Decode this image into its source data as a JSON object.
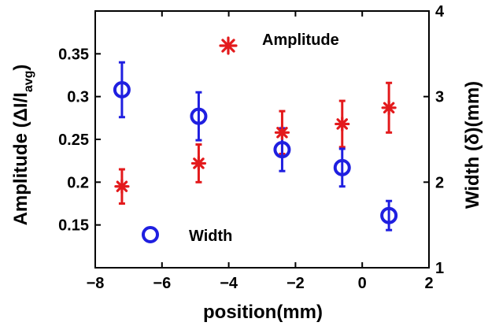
{
  "chart_data": {
    "type": "scatter",
    "xlabel": "position(mm)",
    "ylabel_left": {
      "main": "Amplitude (ΔI/I",
      "sub": "avg",
      "close": ")"
    },
    "ylabel_right": "Width (δ)(mm)",
    "xlim": [
      -8,
      2
    ],
    "ylim_left": [
      0.1,
      0.4
    ],
    "ylim_right": [
      1,
      4
    ],
    "x_ticks": [
      -8,
      -6,
      -4,
      -2,
      0,
      2
    ],
    "y_ticks_left": [
      0.15,
      0.2,
      0.25,
      0.3,
      0.35
    ],
    "y_ticks_right": [
      1,
      2,
      3,
      4
    ],
    "x_tick_labels": [
      "−8",
      "−6",
      "−4",
      "−2",
      "0",
      "2"
    ],
    "y_tick_labels_left": [
      "0.15",
      "0.2",
      "0.25",
      "0.3",
      "0.35"
    ],
    "y_tick_labels_right": [
      "1",
      "2",
      "3",
      "4"
    ],
    "grid": false,
    "series": [
      {
        "name": "Amplitude",
        "axis": "left",
        "marker": "asterisk",
        "color": "#e31a1c",
        "x": [
          -7.2,
          -4.9,
          -2.4,
          -0.6,
          0.8
        ],
        "y": [
          0.195,
          0.222,
          0.258,
          0.268,
          0.287
        ],
        "yerr": [
          0.02,
          0.022,
          0.025,
          0.027,
          0.029
        ]
      },
      {
        "name": "Width",
        "axis": "right",
        "marker": "circle",
        "color": "#1f1fe0",
        "x": [
          -7.2,
          -4.9,
          -2.4,
          -0.6,
          0.8
        ],
        "y": [
          3.08,
          2.77,
          2.38,
          2.17,
          1.61
        ],
        "yerr": [
          0.32,
          0.28,
          0.25,
          0.22,
          0.17
        ]
      }
    ],
    "legend": [
      {
        "series": "Amplitude",
        "label": "Amplitude",
        "placement": "top-center"
      },
      {
        "series": "Width",
        "label": "Width",
        "placement": "bottom-left"
      }
    ]
  }
}
